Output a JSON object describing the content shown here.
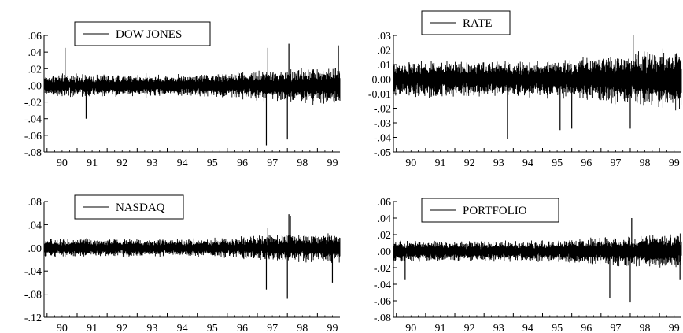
{
  "chart_data": [
    {
      "type": "line",
      "series": [
        {
          "name": "DOW JONES",
          "volatility": 0.0095
        }
      ],
      "x_ticks": [
        "90",
        "91",
        "92",
        "93",
        "94",
        "95",
        "96",
        "97",
        "98",
        "99"
      ],
      "y_ticks": [
        ".06",
        ".04",
        ".02",
        ".00",
        "-.02",
        "-.04",
        "-.06",
        "-.08"
      ],
      "y_tick_values": [
        0.06,
        0.04,
        0.02,
        0.0,
        -0.02,
        -0.04,
        -0.06,
        -0.08
      ],
      "ylim": [
        -0.08,
        0.06
      ],
      "xlim": [
        1989.9,
        1999.75
      ],
      "grid": false,
      "legend": "top-left",
      "spikes": [
        [
          1990.6,
          0.045
        ],
        [
          1991.3,
          -0.04
        ],
        [
          1997.3,
          -0.072
        ],
        [
          1997.35,
          0.045
        ],
        [
          1998.0,
          -0.065
        ],
        [
          1998.05,
          0.05
        ],
        [
          1999.7,
          0.048
        ]
      ]
    },
    {
      "type": "line",
      "series": [
        {
          "name": "RATE",
          "volatility": 0.0085
        }
      ],
      "x_ticks": [
        "90",
        "91",
        "92",
        "93",
        "94",
        "95",
        "96",
        "97",
        "98",
        "99"
      ],
      "y_ticks": [
        ".03",
        ".02",
        ".01",
        "0.00",
        "-0.01",
        "-.02",
        "-.03",
        "-.04",
        "-.05"
      ],
      "y_tick_values": [
        0.03,
        0.02,
        0.01,
        0.0,
        -0.01,
        -0.02,
        -0.03,
        -0.04,
        -0.05
      ],
      "ylim": [
        -0.05,
        0.03
      ],
      "xlim": [
        1989.9,
        1999.75
      ],
      "grid": false,
      "legend": "top-left",
      "spikes": [
        [
          1993.8,
          -0.041
        ],
        [
          1995.6,
          -0.035
        ],
        [
          1996.0,
          -0.034
        ],
        [
          1998.0,
          -0.034
        ],
        [
          1998.1,
          0.03
        ]
      ]
    },
    {
      "type": "line",
      "series": [
        {
          "name": "NASDAQ",
          "volatility": 0.011
        }
      ],
      "x_ticks": [
        "90",
        "91",
        "92",
        "93",
        "94",
        "95",
        "96",
        "97",
        "98",
        "99"
      ],
      "y_ticks": [
        ".08",
        ".04",
        ".00",
        "-.04",
        "-.08",
        "-.12"
      ],
      "y_tick_values": [
        0.08,
        0.04,
        0.0,
        -0.04,
        -0.08,
        -0.12
      ],
      "ylim": [
        -0.12,
        0.08
      ],
      "xlim": [
        1989.9,
        1999.75
      ],
      "grid": false,
      "legend": "top-left",
      "spikes": [
        [
          1997.3,
          -0.072
        ],
        [
          1997.35,
          0.035
        ],
        [
          1998.0,
          -0.088
        ],
        [
          1998.05,
          0.058
        ],
        [
          1998.1,
          0.055
        ],
        [
          1999.5,
          -0.06
        ]
      ]
    },
    {
      "type": "line",
      "series": [
        {
          "name": "PORTFOLIO",
          "volatility": 0.0085
        }
      ],
      "x_ticks": [
        "90",
        "91",
        "92",
        "93",
        "94",
        "95",
        "96",
        "97",
        "98",
        "99"
      ],
      "y_ticks": [
        ".06",
        ".04",
        ".02",
        ".00",
        "-.02",
        "-.04",
        "-.06",
        "-.08"
      ],
      "y_tick_values": [
        0.06,
        0.04,
        0.02,
        0.0,
        -0.02,
        -0.04,
        -0.06,
        -0.08
      ],
      "ylim": [
        -0.08,
        0.06
      ],
      "xlim": [
        1989.9,
        1999.75
      ],
      "grid": false,
      "legend": "top-left",
      "spikes": [
        [
          1990.3,
          -0.035
        ],
        [
          1997.3,
          -0.057
        ],
        [
          1998.0,
          -0.062
        ],
        [
          1998.05,
          0.04
        ],
        [
          1999.7,
          -0.035
        ]
      ]
    }
  ]
}
